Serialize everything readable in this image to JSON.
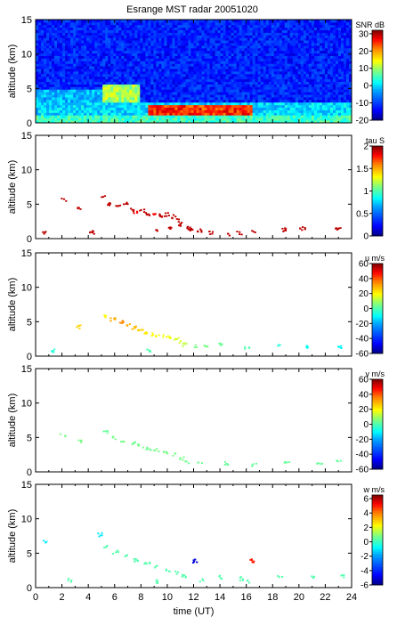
{
  "title": "Esrange MST radar 20051020",
  "chart_data": [
    {
      "type": "heatmap",
      "panel": "snr",
      "ylabel": "altitude (km)",
      "xlabel": "",
      "xlim": [
        0,
        24
      ],
      "ylim": [
        0,
        15
      ],
      "yticks": [
        "0",
        "5",
        "10",
        "15"
      ],
      "colorbar": {
        "label": "SNR dB",
        "range": [
          -20,
          32
        ],
        "ticks": [
          "30",
          "20",
          "10",
          "0",
          "-10",
          "-20"
        ],
        "tick_values": [
          30,
          20,
          10,
          0,
          -10,
          -20
        ]
      },
      "colormap": [
        "#00007f",
        "#0000ff",
        "#0080ff",
        "#00ffff",
        "#80ff80",
        "#ffff00",
        "#ff8000",
        "#ff0000",
        "#7f0000"
      ],
      "description_values": [
        {
          "x_range": [
            0,
            24
          ],
          "alt_range": [
            0,
            1
          ],
          "value_db": 5
        },
        {
          "x_range": [
            0,
            24
          ],
          "alt_range": [
            1,
            3
          ],
          "value_db": 0
        },
        {
          "x_range": [
            5,
            8
          ],
          "alt_range": [
            3,
            5.5
          ],
          "value_db": 10
        },
        {
          "x_range": [
            8.5,
            16.5
          ],
          "alt_range": [
            1,
            2.5
          ],
          "value_db": 25
        },
        {
          "x_range": [
            0,
            24
          ],
          "alt_range": [
            5,
            15
          ],
          "value_db": -12
        }
      ]
    },
    {
      "type": "scatter",
      "panel": "tau",
      "ylabel": "altitude (km)",
      "xlim": [
        0,
        24
      ],
      "ylim": [
        0,
        15
      ],
      "yticks": [
        "0",
        "5",
        "10",
        "15"
      ],
      "colorbar": {
        "label": "tau S",
        "range": [
          0,
          2
        ],
        "ticks": [
          "2",
          "1.5",
          "1",
          "0.5",
          "0"
        ],
        "tick_values": [
          2,
          1.5,
          1,
          0.5,
          0
        ]
      },
      "points": [
        [
          2.1,
          5.8,
          1.9
        ],
        [
          3.2,
          4.4,
          1.9
        ],
        [
          5.0,
          6.1,
          1.9
        ],
        [
          5.6,
          5.2,
          1.9
        ],
        [
          6.2,
          4.8,
          1.9
        ],
        [
          6.8,
          5.1,
          1.9
        ],
        [
          7.2,
          4.3,
          1.9
        ],
        [
          7.6,
          3.9,
          1.8
        ],
        [
          8.0,
          4.2,
          1.9
        ],
        [
          8.4,
          3.6,
          1.9
        ],
        [
          8.9,
          3.8,
          1.8
        ],
        [
          9.4,
          3.4,
          1.9
        ],
        [
          9.9,
          3.6,
          1.9
        ],
        [
          10.4,
          3.3,
          1.9
        ],
        [
          10.8,
          2.8,
          1.9
        ],
        [
          11.0,
          2.2,
          1.9
        ],
        [
          11.4,
          1.7,
          1.9
        ],
        [
          11.8,
          1.5,
          1.9
        ],
        [
          12.4,
          1.3,
          1.9
        ],
        [
          13.2,
          1.0,
          1.9
        ],
        [
          14.6,
          0.8,
          1.9
        ],
        [
          16.5,
          1.0,
          1.9
        ],
        [
          18.8,
          1.4,
          1.9
        ],
        [
          20.2,
          1.6,
          1.9
        ],
        [
          22.9,
          1.5,
          1.9
        ],
        [
          0.6,
          1.0,
          1.9
        ],
        [
          4.2,
          1.0,
          1.9
        ],
        [
          9.0,
          1.2,
          1.9
        ],
        [
          10.2,
          1.6,
          1.9
        ],
        [
          15.4,
          0.9,
          1.9
        ]
      ]
    },
    {
      "type": "scatter",
      "panel": "u",
      "ylabel": "altitude (km)",
      "xlim": [
        0,
        24
      ],
      "ylim": [
        0,
        15
      ],
      "yticks": [
        "0",
        "5",
        "10",
        "15"
      ],
      "colorbar": {
        "label": "u m/s",
        "range": [
          -60,
          60
        ],
        "ticks": [
          "60",
          "40",
          "20",
          "0",
          "-20",
          "-40",
          "-60"
        ],
        "tick_values": [
          60,
          40,
          20,
          0,
          -20,
          -40,
          -60
        ]
      },
      "points": [
        [
          3.2,
          4.4,
          25
        ],
        [
          5.2,
          6.0,
          20
        ],
        [
          5.8,
          5.4,
          30
        ],
        [
          6.4,
          5.0,
          35
        ],
        [
          6.9,
          4.6,
          30
        ],
        [
          7.4,
          4.2,
          28
        ],
        [
          7.9,
          3.8,
          25
        ],
        [
          8.4,
          3.4,
          22
        ],
        [
          8.9,
          3.2,
          20
        ],
        [
          9.5,
          3.0,
          18
        ],
        [
          10.0,
          2.8,
          18
        ],
        [
          10.6,
          2.6,
          15
        ],
        [
          11.0,
          2.2,
          15
        ],
        [
          11.3,
          1.7,
          12
        ],
        [
          12.0,
          1.5,
          5
        ],
        [
          12.8,
          1.6,
          5
        ],
        [
          14.0,
          1.8,
          3
        ],
        [
          16.0,
          1.4,
          0
        ],
        [
          18.5,
          1.6,
          -5
        ],
        [
          20.5,
          1.4,
          -8
        ],
        [
          23.0,
          1.5,
          -10
        ],
        [
          1.2,
          0.9,
          -5
        ],
        [
          8.6,
          0.9,
          0
        ]
      ]
    },
    {
      "type": "scatter",
      "panel": "v",
      "ylabel": "altitude (km)",
      "xlim": [
        0,
        24
      ],
      "ylim": [
        0,
        15
      ],
      "yticks": [
        "0",
        "5",
        "10",
        "15"
      ],
      "colorbar": {
        "label": "v m/s",
        "range": [
          -60,
          60
        ],
        "ticks": [
          "60",
          "40",
          "20",
          "0",
          "-20",
          "-40",
          "-60"
        ],
        "tick_values": [
          60,
          40,
          20,
          0,
          -20,
          -40,
          -60
        ]
      },
      "points": [
        [
          2.0,
          5.5,
          5
        ],
        [
          3.3,
          4.5,
          5
        ],
        [
          5.2,
          6.0,
          3
        ],
        [
          5.9,
          5.0,
          5
        ],
        [
          6.6,
          4.6,
          5
        ],
        [
          7.3,
          4.3,
          4
        ],
        [
          7.9,
          3.9,
          5
        ],
        [
          8.5,
          3.5,
          4
        ],
        [
          9.1,
          3.3,
          5
        ],
        [
          9.8,
          3.0,
          5
        ],
        [
          10.5,
          2.6,
          5
        ],
        [
          11.0,
          2.1,
          5
        ],
        [
          11.5,
          1.6,
          4
        ],
        [
          12.4,
          1.3,
          4
        ],
        [
          14.5,
          1.4,
          3
        ],
        [
          16.5,
          1.2,
          3
        ],
        [
          19.0,
          1.5,
          3
        ],
        [
          21.5,
          1.5,
          3
        ],
        [
          23.0,
          1.6,
          3
        ]
      ]
    },
    {
      "type": "scatter",
      "panel": "w",
      "ylabel": "altitude (km)",
      "xlabel": "time (UT)",
      "xlim": [
        0,
        24
      ],
      "ylim": [
        0,
        15
      ],
      "yticks": [
        "0",
        "5",
        "10",
        "15"
      ],
      "xticks": [
        "0",
        "2",
        "4",
        "6",
        "8",
        "10",
        "12",
        "14",
        "16",
        "18",
        "20",
        "22",
        "24"
      ],
      "colorbar": {
        "label": "w m/s",
        "range": [
          -6,
          6.5
        ],
        "ticks": [
          "6",
          "4",
          "2",
          "0",
          "-2",
          "-4",
          "-6"
        ],
        "tick_values": [
          6,
          4,
          2,
          0,
          -2,
          -4,
          -6
        ]
      },
      "points": [
        [
          0.6,
          6.8,
          -1
        ],
        [
          4.8,
          7.8,
          -1
        ],
        [
          5.3,
          6.0,
          0.3
        ],
        [
          6.0,
          5.3,
          0.3
        ],
        [
          6.8,
          4.7,
          0.3
        ],
        [
          7.6,
          4.1,
          0.3
        ],
        [
          8.4,
          3.6,
          0.3
        ],
        [
          9.2,
          3.1,
          0.3
        ],
        [
          10.0,
          2.7,
          0.3
        ],
        [
          10.6,
          2.3,
          0.3
        ],
        [
          11.2,
          1.8,
          0.3
        ],
        [
          9.0,
          1.0,
          0.3
        ],
        [
          12.5,
          1.2,
          0.3
        ],
        [
          14.0,
          1.6,
          0.3
        ],
        [
          15.5,
          1.4,
          0.3
        ],
        [
          16.2,
          1.0,
          0.3
        ],
        [
          16.4,
          4.0,
          5
        ],
        [
          12.0,
          4.0,
          -5
        ],
        [
          18.5,
          1.8,
          0.3
        ],
        [
          21.0,
          1.6,
          0.3
        ],
        [
          23.2,
          1.8,
          0.3
        ],
        [
          2.5,
          1.2,
          0.3
        ]
      ]
    }
  ]
}
